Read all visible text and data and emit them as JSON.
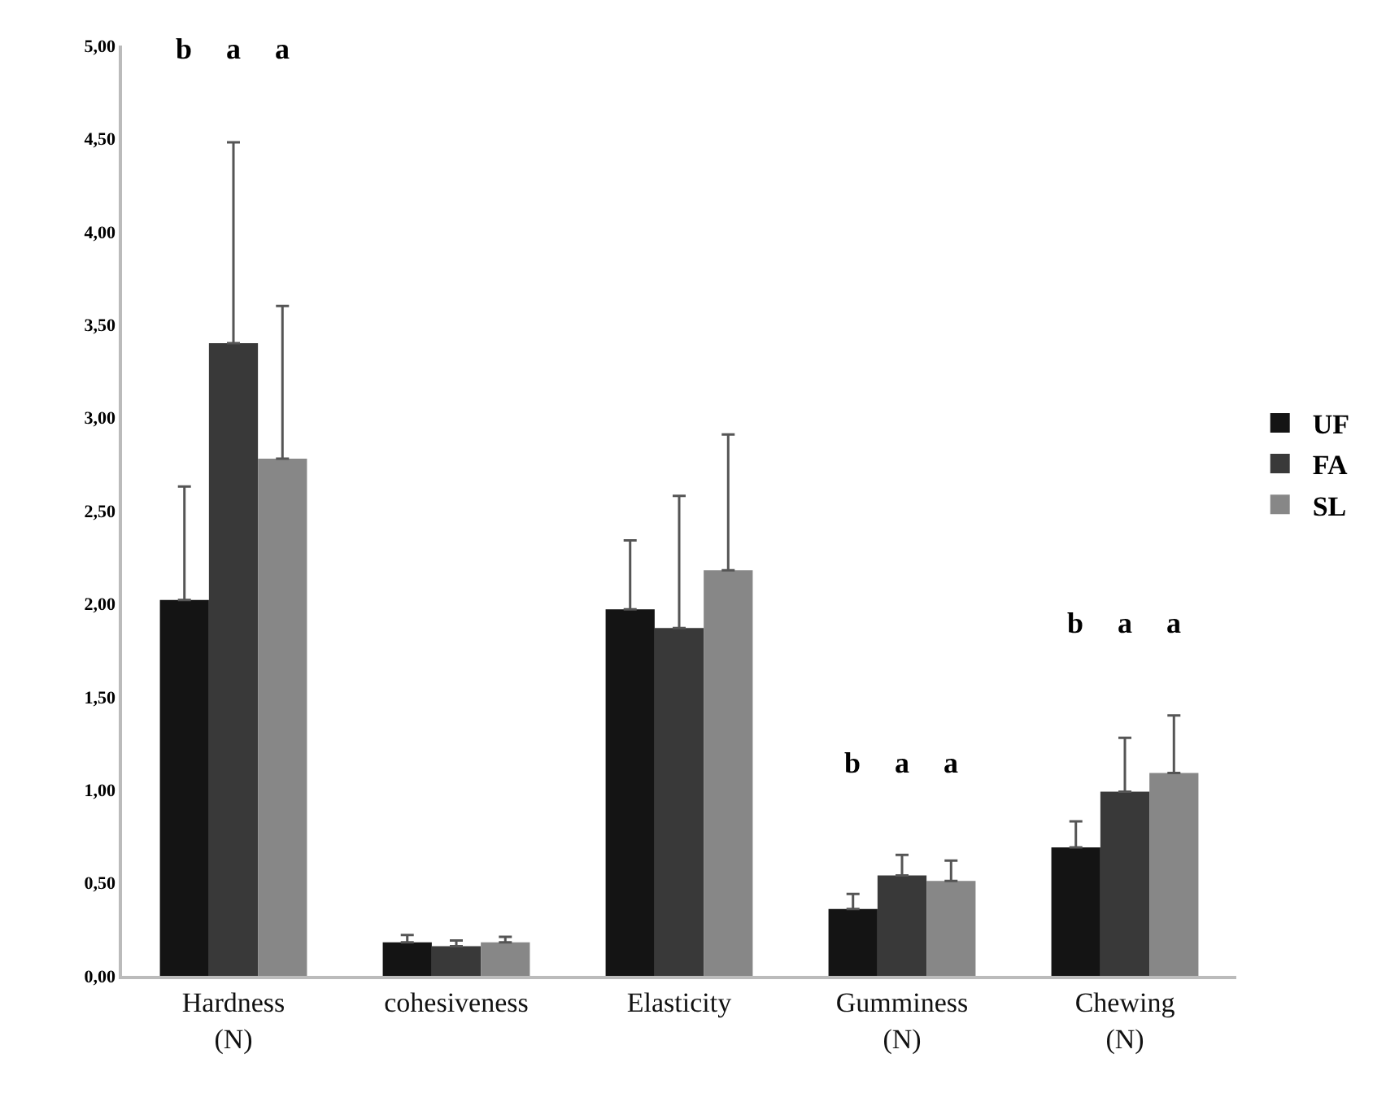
{
  "chart_data": {
    "type": "bar",
    "categories": [
      "Hardness\n(N)",
      "cohesiveness",
      "Elasticity",
      "Gumminess\n(N)",
      "Chewing\n(N)"
    ],
    "series": [
      {
        "name": "UF",
        "color": "#141414",
        "values": [
          2.02,
          0.18,
          1.97,
          0.36,
          0.69
        ],
        "errors": [
          [
            2.02,
            2.63
          ],
          [
            0.18,
            0.22
          ],
          [
            1.97,
            2.34
          ],
          [
            0.36,
            0.44
          ],
          [
            0.69,
            0.83
          ]
        ]
      },
      {
        "name": "FA",
        "color": "#393939",
        "values": [
          3.4,
          0.16,
          1.87,
          0.54,
          0.99
        ],
        "errors": [
          [
            3.4,
            4.48
          ],
          [
            0.16,
            0.19
          ],
          [
            1.87,
            2.58
          ],
          [
            0.54,
            0.65
          ],
          [
            0.99,
            1.28
          ]
        ]
      },
      {
        "name": "SL",
        "color": "#878787",
        "values": [
          2.78,
          0.18,
          2.18,
          0.51,
          1.09
        ],
        "errors": [
          [
            2.78,
            3.6
          ],
          [
            0.18,
            0.21
          ],
          [
            2.18,
            2.91
          ],
          [
            0.51,
            0.62
          ],
          [
            1.09,
            1.4
          ]
        ]
      }
    ],
    "ylim": [
      0,
      5
    ],
    "yticks": [
      {
        "value": 0,
        "label": "0,00"
      },
      {
        "value": 0.5,
        "label": "0,50"
      },
      {
        "value": 1,
        "label": "1,00"
      },
      {
        "value": 1.5,
        "label": "1,50"
      },
      {
        "value": 2,
        "label": "2,00"
      },
      {
        "value": 2.5,
        "label": "2,50"
      },
      {
        "value": 3,
        "label": "3,00"
      },
      {
        "value": 3.5,
        "label": "3,50"
      },
      {
        "value": 4,
        "label": "4,00"
      },
      {
        "value": 4.5,
        "label": "4,50"
      },
      {
        "value": 5,
        "label": "5,00"
      }
    ],
    "annotations": [
      "b a a",
      "b a a",
      "b a a"
    ],
    "grid": false,
    "legend": "right"
  }
}
